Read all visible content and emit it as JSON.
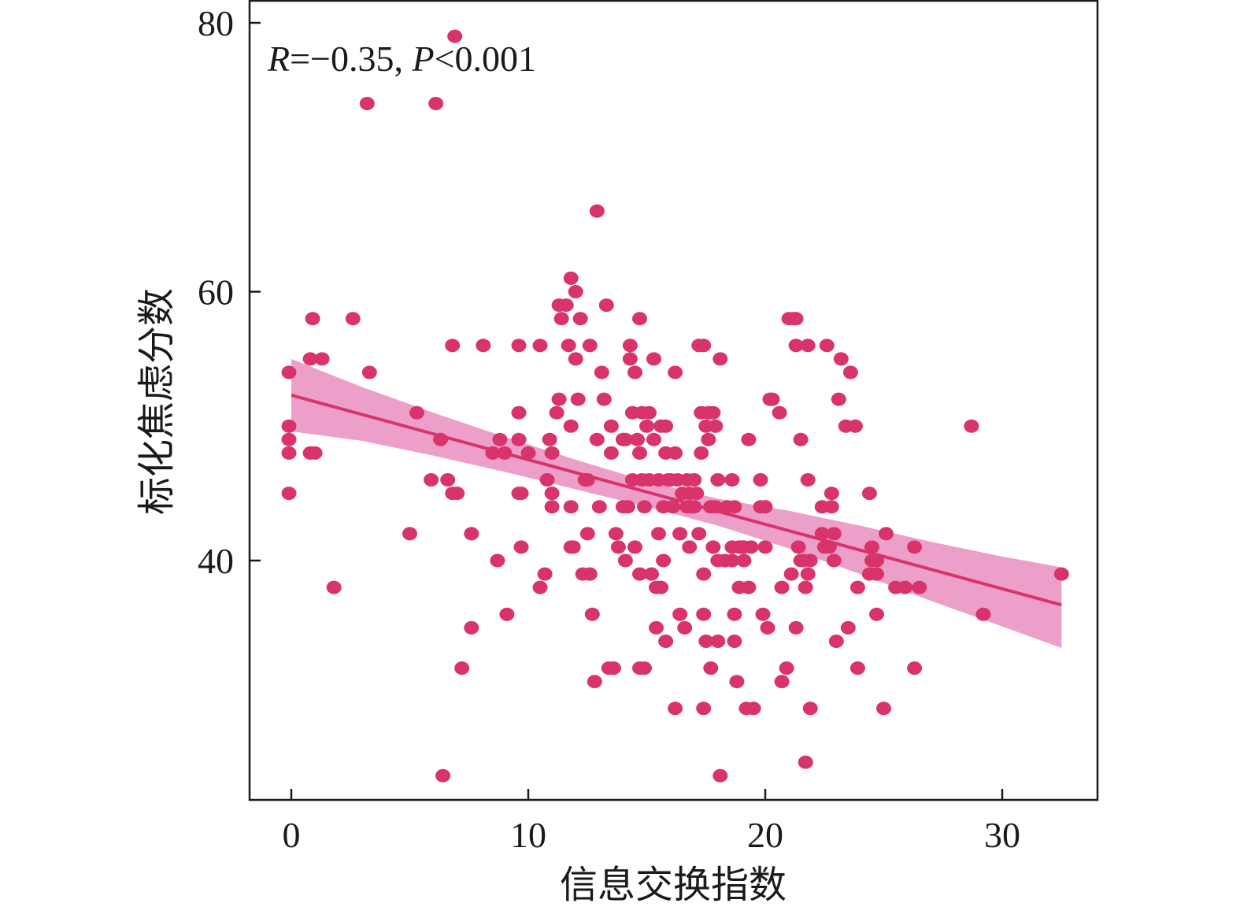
{
  "chart_data": {
    "type": "scatter",
    "title": "",
    "xlabel": "信息交换指数",
    "ylabel": "标化焦虑分数",
    "xlim": [
      -1.8,
      34
    ],
    "ylim": [
      20.0,
      81.0
    ],
    "xticks": [
      0,
      10,
      20,
      30
    ],
    "xtick_labels": [
      "0",
      "10",
      "20",
      "30"
    ],
    "yticks": [
      40,
      60,
      80
    ],
    "ytick_labels": [
      "40",
      "60",
      "80"
    ],
    "grid": false,
    "legend": "none",
    "annotation": {
      "r_symbol": "R",
      "r_text": "=−0.35, ",
      "p_symbol": "P",
      "p_text": "<0.001"
    },
    "colors": {
      "points": "#d9336b",
      "fit_line": "#d9336b",
      "ci_band": "#e98fbf"
    },
    "regression": {
      "intercept": 52.3,
      "slope": -0.48,
      "x_range": [
        0,
        32.5
      ]
    },
    "confidence_band": {
      "x": [
        0,
        3,
        6,
        9,
        12,
        15,
        18,
        21,
        24,
        27,
        30,
        32.5
      ],
      "lower": [
        49.6,
        48.9,
        47.8,
        46.6,
        45.3,
        44.0,
        42.6,
        40.9,
        39.0,
        37.0,
        35.1,
        33.5
      ],
      "upper": [
        55.0,
        52.9,
        51.0,
        49.2,
        47.5,
        45.9,
        44.6,
        43.7,
        42.6,
        41.4,
        40.3,
        39.5
      ]
    },
    "series": [
      {
        "points": [
          [
            -0.1,
            54
          ],
          [
            -0.1,
            50
          ],
          [
            -0.1,
            49
          ],
          [
            -0.1,
            48
          ],
          [
            -0.1,
            45
          ],
          [
            0.8,
            48
          ],
          [
            0.9,
            58
          ],
          [
            0.8,
            55
          ],
          [
            1,
            48
          ],
          [
            1.3,
            55
          ],
          [
            1.8,
            38
          ],
          [
            2.6,
            58
          ],
          [
            3.2,
            74
          ],
          [
            3.3,
            54
          ],
          [
            5,
            42
          ],
          [
            5.3,
            51
          ],
          [
            5.9,
            46
          ],
          [
            6.1,
            74
          ],
          [
            6.3,
            49
          ],
          [
            6.4,
            24
          ],
          [
            6.6,
            46
          ],
          [
            6.8,
            56
          ],
          [
            6.8,
            45
          ],
          [
            6.9,
            79
          ],
          [
            7,
            45
          ],
          [
            7.2,
            32
          ],
          [
            7.6,
            35
          ],
          [
            7.6,
            42
          ],
          [
            8.1,
            56
          ],
          [
            8.5,
            48
          ],
          [
            8.7,
            40
          ],
          [
            8.8,
            49
          ],
          [
            9,
            48
          ],
          [
            9.1,
            36
          ],
          [
            9.6,
            56
          ],
          [
            9.6,
            51
          ],
          [
            9.6,
            49
          ],
          [
            9.6,
            45
          ],
          [
            9.7,
            45
          ],
          [
            9.7,
            41
          ],
          [
            10,
            48
          ],
          [
            10.5,
            56
          ],
          [
            10.5,
            38
          ],
          [
            10.7,
            39
          ],
          [
            10.8,
            46
          ],
          [
            10.9,
            49
          ],
          [
            11,
            48
          ],
          [
            11,
            45
          ],
          [
            11,
            44
          ],
          [
            11.2,
            51
          ],
          [
            11.3,
            52
          ],
          [
            11.3,
            59
          ],
          [
            11.4,
            58
          ],
          [
            11.6,
            59
          ],
          [
            11.7,
            56
          ],
          [
            11.8,
            61
          ],
          [
            11.8,
            50
          ],
          [
            11.8,
            44
          ],
          [
            11.8,
            41
          ],
          [
            11.9,
            41
          ],
          [
            12,
            60
          ],
          [
            12,
            55
          ],
          [
            12.1,
            52
          ],
          [
            12.2,
            58
          ],
          [
            12.3,
            39
          ],
          [
            12.4,
            46
          ],
          [
            12.5,
            46
          ],
          [
            12.5,
            42
          ],
          [
            12.6,
            56
          ],
          [
            12.6,
            39
          ],
          [
            12.7,
            36
          ],
          [
            12.8,
            31
          ],
          [
            12.9,
            49
          ],
          [
            12.9,
            66
          ],
          [
            13,
            44
          ],
          [
            13.1,
            54
          ],
          [
            13.2,
            52
          ],
          [
            13.3,
            59
          ],
          [
            13.4,
            32
          ],
          [
            13.5,
            50
          ],
          [
            13.5,
            48
          ],
          [
            13.6,
            32
          ],
          [
            13.7,
            42
          ],
          [
            13.8,
            41
          ],
          [
            14,
            49
          ],
          [
            14,
            44
          ],
          [
            14.1,
            49
          ],
          [
            14.1,
            40
          ],
          [
            14.2,
            44
          ],
          [
            14.3,
            56
          ],
          [
            14.3,
            55
          ],
          [
            14.4,
            51
          ],
          [
            14.4,
            46
          ],
          [
            14.5,
            54
          ],
          [
            14.5,
            41
          ],
          [
            14.6,
            49
          ],
          [
            14.7,
            48
          ],
          [
            14.7,
            39
          ],
          [
            14.7,
            58
          ],
          [
            14.7,
            32
          ],
          [
            14.8,
            51
          ],
          [
            14.8,
            46
          ],
          [
            14.9,
            44
          ],
          [
            14.9,
            32
          ],
          [
            15,
            50
          ],
          [
            15.1,
            51
          ],
          [
            15.1,
            46
          ],
          [
            15.2,
            39
          ],
          [
            15.3,
            49
          ],
          [
            15.3,
            55
          ],
          [
            15.4,
            38
          ],
          [
            15.4,
            35
          ],
          [
            15.5,
            42
          ],
          [
            15.5,
            46
          ],
          [
            15.6,
            38
          ],
          [
            15.6,
            50
          ],
          [
            15.7,
            44
          ],
          [
            15.7,
            40
          ],
          [
            15.8,
            50
          ],
          [
            15.8,
            48
          ],
          [
            15.8,
            34
          ],
          [
            15.9,
            46
          ],
          [
            16,
            46
          ],
          [
            16.1,
            44
          ],
          [
            16.2,
            48
          ],
          [
            16.2,
            54
          ],
          [
            16.2,
            29
          ],
          [
            16.3,
            46
          ],
          [
            16.4,
            42
          ],
          [
            16.4,
            36
          ],
          [
            16.5,
            45
          ],
          [
            16.6,
            35
          ],
          [
            16.7,
            46
          ],
          [
            16.7,
            44
          ],
          [
            16.8,
            41
          ],
          [
            16.8,
            45
          ],
          [
            16.9,
            44
          ],
          [
            17,
            46
          ],
          [
            17,
            44
          ],
          [
            17.1,
            45
          ],
          [
            17.2,
            56
          ],
          [
            17.2,
            42
          ],
          [
            17.3,
            51
          ],
          [
            17.3,
            48
          ],
          [
            17.4,
            56
          ],
          [
            17.4,
            39
          ],
          [
            17.4,
            36
          ],
          [
            17.4,
            29
          ],
          [
            17.5,
            34
          ],
          [
            17.5,
            50
          ],
          [
            17.6,
            51
          ],
          [
            17.6,
            49
          ],
          [
            17.7,
            44
          ],
          [
            17.7,
            32
          ],
          [
            17.8,
            51
          ],
          [
            17.8,
            41
          ],
          [
            17.9,
            50
          ],
          [
            17.9,
            44
          ],
          [
            18,
            40
          ],
          [
            18,
            34
          ],
          [
            18,
            46
          ],
          [
            18.1,
            55
          ],
          [
            18.1,
            24
          ],
          [
            18.3,
            40
          ],
          [
            18.4,
            44
          ],
          [
            18.6,
            46
          ],
          [
            18.6,
            41
          ],
          [
            18.6,
            40
          ],
          [
            18.7,
            44
          ],
          [
            18.7,
            34
          ],
          [
            18.7,
            36
          ],
          [
            18.8,
            31
          ],
          [
            18.9,
            38
          ],
          [
            18.9,
            41
          ],
          [
            19,
            41
          ],
          [
            19.1,
            41
          ],
          [
            19.1,
            40
          ],
          [
            19.2,
            29
          ],
          [
            19.3,
            49
          ],
          [
            19.3,
            38
          ],
          [
            19.4,
            41
          ],
          [
            19.5,
            29
          ],
          [
            19.8,
            44
          ],
          [
            19.8,
            46
          ],
          [
            19.9,
            36
          ],
          [
            20,
            44
          ],
          [
            20,
            41
          ],
          [
            20.1,
            35
          ],
          [
            20.2,
            52
          ],
          [
            20.3,
            52
          ],
          [
            20.6,
            51
          ],
          [
            20.7,
            38
          ],
          [
            20.7,
            31
          ],
          [
            20.9,
            32
          ],
          [
            21,
            58
          ],
          [
            21.1,
            39
          ],
          [
            21.2,
            58
          ],
          [
            21.3,
            58
          ],
          [
            21.3,
            56
          ],
          [
            21.3,
            35
          ],
          [
            21.4,
            41
          ],
          [
            21.5,
            49
          ],
          [
            21.5,
            40
          ],
          [
            21.6,
            40
          ],
          [
            21.7,
            38
          ],
          [
            21.7,
            25
          ],
          [
            21.8,
            39
          ],
          [
            21.8,
            46
          ],
          [
            21.8,
            56
          ],
          [
            21.9,
            40
          ],
          [
            21.9,
            29
          ],
          [
            22.4,
            44
          ],
          [
            22.4,
            42
          ],
          [
            22.5,
            41
          ],
          [
            22.6,
            56
          ],
          [
            22.7,
            41
          ],
          [
            22.8,
            45
          ],
          [
            22.8,
            44
          ],
          [
            22.9,
            42
          ],
          [
            22.9,
            40
          ],
          [
            23,
            34
          ],
          [
            23.1,
            52
          ],
          [
            23.2,
            55
          ],
          [
            23.4,
            50
          ],
          [
            23.5,
            35
          ],
          [
            23.6,
            54
          ],
          [
            23.8,
            50
          ],
          [
            23.9,
            38
          ],
          [
            23.9,
            32
          ],
          [
            24.4,
            45
          ],
          [
            24.4,
            39
          ],
          [
            24.5,
            40
          ],
          [
            24.5,
            41
          ],
          [
            24.7,
            36
          ],
          [
            24.7,
            39
          ],
          [
            24.7,
            40
          ],
          [
            25,
            29
          ],
          [
            25.1,
            42
          ],
          [
            25.5,
            38
          ],
          [
            25.9,
            38
          ],
          [
            26.3,
            41
          ],
          [
            26.3,
            32
          ],
          [
            26.5,
            38
          ],
          [
            28.7,
            50
          ],
          [
            29.2,
            36
          ],
          [
            32.5,
            39
          ]
        ]
      }
    ]
  }
}
